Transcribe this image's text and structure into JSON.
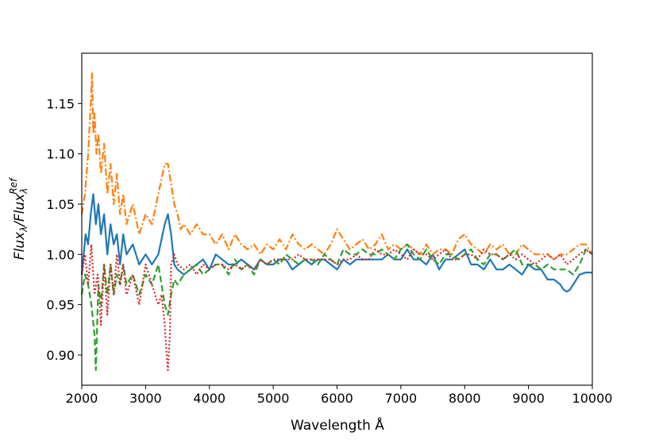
{
  "chart_data": {
    "type": "line",
    "title": "",
    "xlabel": "Wavelength Å",
    "ylabel": "Flux_λ/Flux_λ^Ref",
    "xlim": [
      2000,
      10000
    ],
    "ylim": [
      0.87,
      1.2
    ],
    "grid": false,
    "legend": "none",
    "x_ticks": [
      "2000",
      "3000",
      "4000",
      "5000",
      "6000",
      "7000",
      "8000",
      "9000",
      "10000"
    ],
    "y_ticks": [
      "0.90",
      "0.95",
      "1.00",
      "1.05",
      "1.10",
      "1.15"
    ],
    "series": [
      {
        "color": "#1f77b4",
        "style": "solid",
        "x": [
          2000,
          2060,
          2100,
          2140,
          2180,
          2220,
          2260,
          2300,
          2350,
          2400,
          2450,
          2500,
          2550,
          2600,
          2650,
          2700,
          2800,
          2900,
          3000,
          3100,
          3200,
          3300,
          3350,
          3400,
          3450,
          3500,
          3600,
          3700,
          3800,
          3900,
          4000,
          4100,
          4200,
          4300,
          4400,
          4500,
          4600,
          4700,
          4800,
          4900,
          5000,
          5100,
          5200,
          5300,
          5400,
          5500,
          5600,
          5700,
          5800,
          5900,
          6000,
          6100,
          6200,
          6300,
          6400,
          6500,
          6600,
          6700,
          6800,
          6900,
          7000,
          7100,
          7200,
          7300,
          7400,
          7500,
          7600,
          7700,
          7800,
          7900,
          8000,
          8100,
          8200,
          8300,
          8400,
          8500,
          8600,
          8700,
          8800,
          8900,
          9000,
          9100,
          9200,
          9300,
          9400,
          9500,
          9550,
          9600,
          9650,
          9700,
          9800,
          9900,
          10000
        ],
        "y": [
          0.98,
          1.02,
          1.01,
          1.04,
          1.06,
          1.03,
          1.05,
          1.02,
          1.04,
          1.0,
          1.03,
          1.01,
          1.02,
          0.99,
          1.02,
          1.0,
          1.01,
          0.99,
          1.0,
          0.99,
          1.0,
          1.03,
          1.04,
          1.02,
          0.99,
          0.985,
          0.98,
          0.985,
          0.99,
          0.995,
          0.985,
          1.0,
          0.995,
          0.99,
          0.99,
          0.995,
          0.99,
          0.985,
          0.995,
          0.99,
          0.99,
          0.995,
          0.995,
          0.985,
          0.99,
          0.995,
          0.99,
          0.995,
          0.995,
          0.99,
          0.985,
          0.995,
          0.99,
          0.995,
          0.995,
          0.995,
          0.995,
          0.995,
          1.0,
          0.995,
          0.995,
          1.005,
          0.995,
          0.995,
          0.99,
          1.0,
          0.985,
          0.995,
          0.995,
          1.0,
          1.005,
          0.99,
          0.99,
          0.985,
          0.995,
          0.985,
          0.985,
          0.99,
          0.985,
          0.98,
          0.99,
          0.985,
          0.985,
          0.975,
          0.975,
          0.97,
          0.965,
          0.963,
          0.965,
          0.97,
          0.98,
          0.982,
          0.982
        ]
      },
      {
        "color": "#ff7f0e",
        "style": "dashdot",
        "x": [
          2000,
          2050,
          2100,
          2140,
          2160,
          2180,
          2200,
          2230,
          2260,
          2300,
          2350,
          2400,
          2450,
          2500,
          2550,
          2600,
          2650,
          2700,
          2800,
          2900,
          3000,
          3100,
          3200,
          3300,
          3350,
          3400,
          3450,
          3500,
          3550,
          3600,
          3700,
          3800,
          3900,
          4000,
          4100,
          4200,
          4300,
          4400,
          4500,
          4600,
          4700,
          4800,
          4900,
          5000,
          5100,
          5200,
          5300,
          5400,
          5500,
          5600,
          5700,
          5800,
          5900,
          6000,
          6100,
          6200,
          6300,
          6400,
          6500,
          6600,
          6700,
          6800,
          6900,
          7000,
          7100,
          7200,
          7300,
          7400,
          7500,
          7600,
          7700,
          7800,
          7900,
          8000,
          8100,
          8200,
          8300,
          8400,
          8500,
          8600,
          8700,
          8800,
          8900,
          9000,
          9100,
          9200,
          9300,
          9400,
          9500,
          9600,
          9700,
          9800,
          9900,
          10000
        ],
        "y": [
          1.04,
          1.06,
          1.1,
          1.15,
          1.18,
          1.12,
          1.14,
          1.1,
          1.12,
          1.08,
          1.11,
          1.06,
          1.09,
          1.05,
          1.08,
          1.04,
          1.06,
          1.03,
          1.05,
          1.02,
          1.04,
          1.03,
          1.06,
          1.09,
          1.09,
          1.07,
          1.05,
          1.04,
          1.025,
          1.03,
          1.02,
          1.03,
          1.02,
          1.02,
          1.01,
          1.02,
          1.005,
          1.02,
          1.01,
          1.005,
          1.01,
          1.0,
          1.01,
          1.005,
          1.015,
          1.005,
          1.02,
          1.01,
          1.005,
          1.01,
          1.005,
          1.0,
          1.01,
          1.025,
          1.015,
          1.005,
          1.01,
          1.015,
          1.005,
          1.01,
          1.02,
          1.005,
          1.01,
          1.005,
          1.01,
          1.005,
          1.0,
          1.01,
          1.0,
          1.005,
          1.005,
          1.0,
          1.015,
          1.02,
          1.01,
          1.005,
          1.0,
          1.01,
          1.005,
          1.01,
          1.0,
          1.0,
          1.01,
          1.005,
          1.0,
          1.0,
          1.0,
          0.995,
          1.0,
          1.0,
          1.005,
          1.01,
          1.01,
          1.0
        ]
      },
      {
        "color": "#2ca02c",
        "style": "dashed",
        "x": [
          2000,
          2050,
          2100,
          2150,
          2200,
          2220,
          2260,
          2300,
          2350,
          2400,
          2450,
          2500,
          2550,
          2600,
          2650,
          2700,
          2800,
          2900,
          3000,
          3100,
          3200,
          3300,
          3350,
          3400,
          3450,
          3500,
          3600,
          3700,
          3800,
          3900,
          4000,
          4100,
          4200,
          4300,
          4400,
          4500,
          4600,
          4700,
          4800,
          4900,
          5000,
          5100,
          5200,
          5300,
          5400,
          5500,
          5600,
          5700,
          5800,
          5900,
          6000,
          6100,
          6200,
          6300,
          6400,
          6500,
          6600,
          6700,
          6800,
          6900,
          7000,
          7100,
          7200,
          7300,
          7400,
          7500,
          7600,
          7700,
          7800,
          7900,
          8000,
          8100,
          8200,
          8300,
          8400,
          8500,
          8600,
          8700,
          8800,
          8900,
          9000,
          9100,
          9200,
          9300,
          9400,
          9500,
          9600,
          9700,
          9800,
          9900,
          10000
        ],
        "y": [
          0.96,
          0.98,
          0.97,
          0.95,
          0.92,
          0.885,
          0.97,
          0.95,
          0.99,
          0.96,
          0.99,
          0.96,
          0.98,
          0.97,
          0.99,
          0.97,
          0.98,
          0.96,
          0.98,
          0.97,
          0.99,
          0.95,
          0.94,
          0.96,
          0.975,
          0.97,
          0.98,
          0.985,
          0.99,
          0.98,
          0.985,
          0.99,
          0.99,
          0.98,
          0.995,
          0.985,
          0.99,
          0.98,
          0.995,
          0.99,
          0.995,
          0.99,
          1.0,
          0.995,
          0.99,
          0.995,
          0.995,
          0.99,
          1.0,
          0.995,
          0.99,
          1.005,
          1.0,
          1.0,
          1.005,
          1.0,
          1.0,
          1.005,
          1.0,
          0.995,
          1.005,
          1.01,
          1.0,
          0.995,
          1.005,
          0.995,
          0.99,
          1.0,
          1.0,
          0.995,
          1.0,
          1.005,
          0.995,
          0.99,
          1.0,
          1.0,
          0.995,
          1.0,
          1.005,
          0.99,
          0.99,
          0.99,
          0.985,
          0.99,
          0.985,
          0.985,
          0.985,
          0.98,
          0.99,
          1.005,
          1.0
        ]
      },
      {
        "color": "#d62728",
        "style": "dotted",
        "x": [
          2000,
          2050,
          2100,
          2150,
          2200,
          2250,
          2300,
          2350,
          2400,
          2450,
          2500,
          2550,
          2600,
          2650,
          2700,
          2800,
          2900,
          3000,
          3100,
          3150,
          3200,
          3250,
          3300,
          3330,
          3350,
          3380,
          3400,
          3450,
          3500,
          3600,
          3700,
          3800,
          3900,
          4000,
          4100,
          4200,
          4300,
          4400,
          4500,
          4600,
          4700,
          4800,
          4900,
          5000,
          5100,
          5200,
          5300,
          5400,
          5500,
          5600,
          5700,
          5800,
          5900,
          6000,
          6100,
          6200,
          6300,
          6400,
          6500,
          6600,
          6700,
          6800,
          6900,
          7000,
          7100,
          7200,
          7300,
          7400,
          7500,
          7600,
          7700,
          7800,
          7900,
          8000,
          8100,
          8200,
          8300,
          8400,
          8500,
          8600,
          8700,
          8800,
          8900,
          9000,
          9100,
          9200,
          9300,
          9400,
          9500,
          9600,
          9700,
          9800,
          9900,
          10000
        ],
        "y": [
          0.98,
          1.0,
          0.97,
          1.01,
          0.96,
          0.98,
          0.93,
          0.99,
          0.94,
          0.99,
          0.96,
          1.0,
          0.97,
          0.99,
          0.96,
          0.98,
          0.95,
          0.99,
          0.97,
          0.96,
          0.95,
          0.96,
          0.93,
          0.9,
          0.885,
          0.92,
          0.99,
          1.0,
          0.99,
          0.985,
          0.99,
          0.98,
          0.99,
          0.985,
          0.99,
          0.99,
          0.985,
          0.99,
          0.985,
          0.99,
          0.985,
          0.995,
          0.99,
          0.995,
          0.995,
          0.995,
          0.995,
          1.0,
          0.995,
          0.995,
          0.995,
          0.995,
          0.995,
          0.99,
          0.995,
          0.995,
          1.0,
          0.995,
          0.995,
          1.005,
          1.0,
          1.0,
          1.005,
          1.0,
          0.995,
          1.005,
          1.0,
          1.0,
          0.995,
          1.0,
          1.005,
          0.995,
          0.995,
          1.0,
          1.0,
          0.995,
          1.005,
          1.0,
          1.0,
          0.995,
          1.0,
          0.995,
          1.0,
          0.995,
          0.99,
          0.995,
          1.0,
          0.995,
          1.0,
          0.99,
          0.995,
          1.0,
          1.005,
          1.0
        ]
      }
    ]
  }
}
